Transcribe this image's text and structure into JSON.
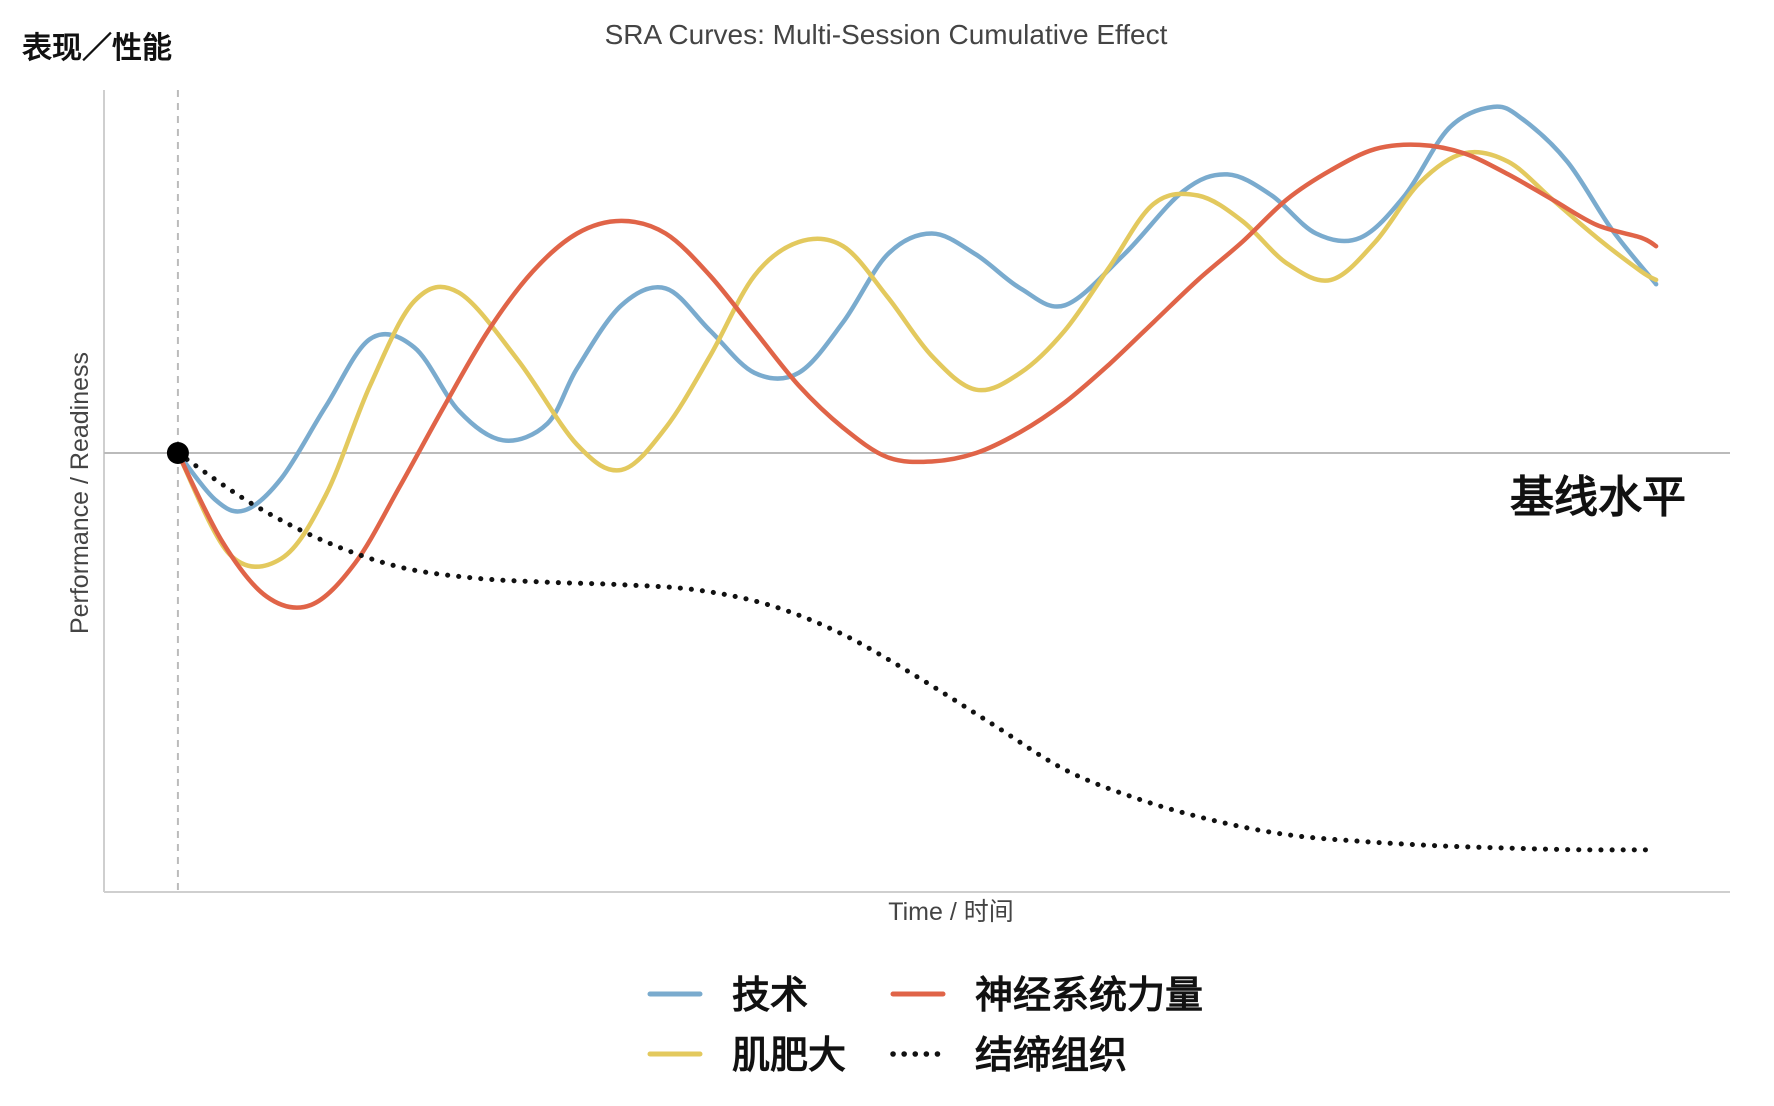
{
  "chart_data": {
    "type": "line",
    "title": "SRA Curves: Multi-Session Cumulative Effect",
    "corner_label": "表现／性能",
    "xlabel": "Time / 时间",
    "ylabel": "Performance / Readiness",
    "xlim": [
      -0.5,
      10.5
    ],
    "ylim": [
      -5.2,
      4.3
    ],
    "grid": false,
    "legend_position": "bottom",
    "baseline": {
      "y": 0,
      "label": "基线水平",
      "color": "#bbbbbb"
    },
    "start_marker": {
      "x": 0,
      "y": 0,
      "color": "#000000"
    },
    "start_vline": {
      "x": 0,
      "color": "#bbbbbb"
    },
    "series": [
      {
        "name": "技术",
        "color": "#7aabce",
        "style": "solid",
        "x": [
          0,
          0.25,
          0.45,
          0.7,
          1.0,
          1.3,
          1.6,
          1.9,
          2.2,
          2.5,
          2.7,
          3.0,
          3.3,
          3.6,
          3.9,
          4.2,
          4.5,
          4.8,
          5.1,
          5.4,
          5.7,
          6.0,
          6.4,
          6.8,
          7.1,
          7.4,
          7.7,
          8.0,
          8.3,
          8.6,
          8.9,
          9.1,
          9.4,
          9.7,
          10.0
        ],
        "values": [
          0,
          -0.55,
          -0.68,
          -0.3,
          0.55,
          1.35,
          1.25,
          0.5,
          0.15,
          0.35,
          1.0,
          1.75,
          1.95,
          1.45,
          0.95,
          0.95,
          1.55,
          2.35,
          2.6,
          2.35,
          1.95,
          1.75,
          2.35,
          3.1,
          3.3,
          3.05,
          2.6,
          2.55,
          3.05,
          3.85,
          4.1,
          3.95,
          3.45,
          2.65,
          2.0
        ]
      },
      {
        "name": "肌肥大",
        "color": "#e3c95e",
        "style": "solid",
        "x": [
          0,
          0.35,
          0.7,
          1.0,
          1.3,
          1.6,
          1.9,
          2.3,
          2.7,
          3.0,
          3.3,
          3.6,
          3.9,
          4.2,
          4.5,
          4.8,
          5.1,
          5.4,
          5.7,
          6.0,
          6.3,
          6.6,
          6.9,
          7.2,
          7.5,
          7.8,
          8.1,
          8.4,
          8.7,
          9.0,
          9.3,
          9.6,
          9.9,
          10.0
        ],
        "values": [
          0,
          -1.2,
          -1.25,
          -0.5,
          0.8,
          1.8,
          1.9,
          1.1,
          0.1,
          -0.2,
          0.3,
          1.15,
          2.1,
          2.5,
          2.45,
          1.85,
          1.15,
          0.75,
          0.95,
          1.45,
          2.2,
          2.95,
          3.05,
          2.75,
          2.25,
          2.05,
          2.5,
          3.2,
          3.55,
          3.45,
          3.0,
          2.55,
          2.15,
          2.05
        ]
      },
      {
        "name": "神经系统力量",
        "color": "#e06448",
        "style": "solid",
        "x": [
          0,
          0.3,
          0.6,
          0.9,
          1.2,
          1.5,
          1.8,
          2.1,
          2.4,
          2.7,
          3.0,
          3.3,
          3.6,
          3.9,
          4.2,
          4.5,
          4.8,
          5.1,
          5.4,
          5.7,
          6.0,
          6.3,
          6.6,
          6.9,
          7.2,
          7.5,
          7.8,
          8.1,
          8.4,
          8.7,
          9.0,
          9.3,
          9.6,
          9.9,
          10.0
        ],
        "values": [
          0,
          -1.05,
          -1.7,
          -1.8,
          -1.3,
          -0.4,
          0.55,
          1.45,
          2.15,
          2.6,
          2.75,
          2.6,
          2.1,
          1.45,
          0.8,
          0.3,
          -0.05,
          -0.1,
          0.0,
          0.25,
          0.6,
          1.05,
          1.55,
          2.05,
          2.5,
          3.0,
          3.35,
          3.6,
          3.65,
          3.55,
          3.3,
          3.0,
          2.7,
          2.55,
          2.45
        ]
      },
      {
        "name": "结缔组织",
        "color": "#111111",
        "style": "dotted",
        "x": [
          0,
          0.5,
          1.0,
          1.5,
          2.0,
          2.5,
          3.0,
          3.5,
          4.0,
          4.5,
          5.0,
          5.5,
          6.0,
          6.5,
          7.0,
          7.5,
          8.0,
          8.5,
          9.0,
          9.5,
          10.0
        ],
        "values": [
          0,
          -0.6,
          -1.05,
          -1.35,
          -1.48,
          -1.53,
          -1.56,
          -1.62,
          -1.8,
          -2.15,
          -2.65,
          -3.2,
          -3.75,
          -4.1,
          -4.35,
          -4.52,
          -4.6,
          -4.65,
          -4.68,
          -4.7,
          -4.7
        ]
      }
    ]
  }
}
